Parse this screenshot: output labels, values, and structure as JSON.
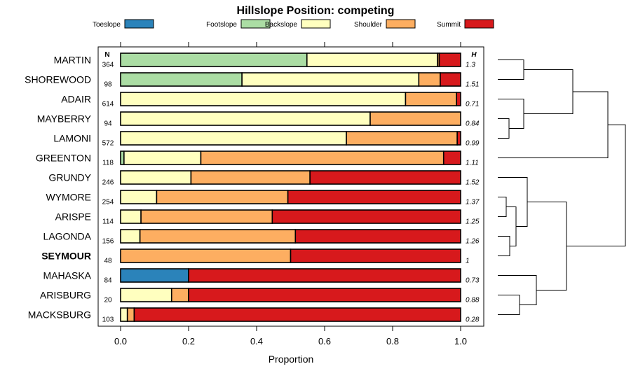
{
  "chart_data": {
    "type": "bar",
    "stacked": true,
    "orientation": "horizontal",
    "title": "Hillslope Position: competing",
    "xlabel": "Proportion",
    "ylabel": "",
    "xlim": [
      0,
      1
    ],
    "x_ticks": [
      "0.0",
      "0.2",
      "0.4",
      "0.6",
      "0.8",
      "1.0"
    ],
    "n_header": "N",
    "h_header": "H",
    "legend_position": "top",
    "highlighted_category": "SEYMOUR",
    "categories": [
      "MARTIN",
      "SHOREWOOD",
      "ADAIR",
      "MAYBERRY",
      "LAMONI",
      "GREENTON",
      "GRUNDY",
      "WYMORE",
      "ARISPE",
      "LAGONDA",
      "SEYMOUR",
      "MAHASKA",
      "ARISBURG",
      "MACKSBURG"
    ],
    "n": [
      "364",
      "98",
      "614",
      "94",
      "572",
      "118",
      "246",
      "254",
      "114",
      "156",
      "48",
      "84",
      "20",
      "103"
    ],
    "h": [
      "1.3",
      "1.51",
      "0.71",
      "0.84",
      "0.99",
      "1.11",
      "1.52",
      "1.37",
      "1.25",
      "1.26",
      "1",
      "0.73",
      "0.88",
      "0.28"
    ],
    "series": [
      {
        "name": "Toeslope",
        "color": "#2b83ba",
        "values": [
          0,
          0,
          0,
          0,
          0,
          0,
          0,
          0,
          0,
          0,
          0,
          0.2,
          0,
          0
        ]
      },
      {
        "name": "Footslope",
        "color": "#abdda4",
        "values": [
          0.548,
          0.357,
          0,
          0,
          0,
          0.01,
          0,
          0,
          0,
          0,
          0,
          0,
          0,
          0
        ]
      },
      {
        "name": "Backslope",
        "color": "#ffffbf",
        "values": [
          0.384,
          0.52,
          0.838,
          0.734,
          0.664,
          0.226,
          0.207,
          0.106,
          0.06,
          0.057,
          0,
          0,
          0.15,
          0.02
        ]
      },
      {
        "name": "Shoulder",
        "color": "#fdae61",
        "values": [
          0.005,
          0.063,
          0.15,
          0.266,
          0.326,
          0.714,
          0.35,
          0.386,
          0.386,
          0.457,
          0.5,
          0,
          0.05,
          0.02
        ]
      },
      {
        "name": "Summit",
        "color": "#d7191c",
        "values": [
          0.063,
          0.06,
          0.012,
          0,
          0.01,
          0.05,
          0.443,
          0.508,
          0.554,
          0.486,
          0.5,
          0.8,
          0.8,
          0.96
        ]
      }
    ]
  }
}
